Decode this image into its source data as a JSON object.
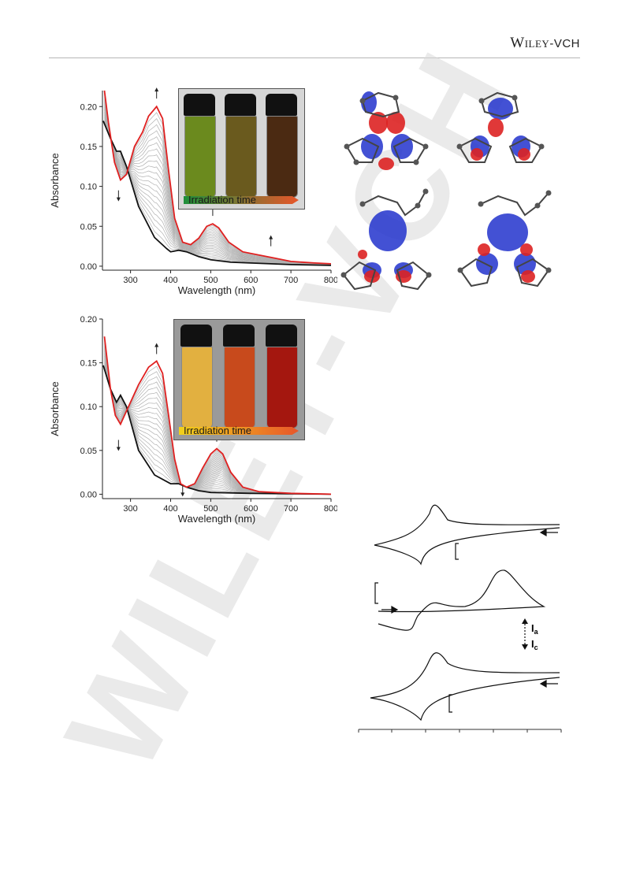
{
  "header": {
    "publisher_main": "Wiley",
    "publisher_suffix": "-VCH"
  },
  "watermark": {
    "text": "WILEY-VCH"
  },
  "panel_top": {
    "photo_label": "Irradiation time",
    "colors": {
      "start": "#1e8f3a",
      "end": "#e8562a",
      "vial_1": "#6b8a1e",
      "vial_2": "#6a5a1e",
      "vial_3": "#4b2a12"
    }
  },
  "panel_bottom": {
    "photo_label": "Irradiation time",
    "colors": {
      "start": "#f2d21b",
      "end": "#e8562a",
      "vial_1": "#e2b040",
      "vial_2": "#c84a1c",
      "vial_3": "#a4170f"
    }
  },
  "cv": {
    "label_anodic": "I",
    "sub_anodic": "a",
    "label_cathodic": "I",
    "sub_cathodic": "c"
  },
  "chart_data": [
    {
      "type": "line",
      "title": "",
      "xlabel": "Wavelength (nm)",
      "ylabel": "Absorbance",
      "xlim": [
        230,
        800
      ],
      "ylim": [
        -0.005,
        0.22
      ],
      "x_ticks": [
        "300",
        "400",
        "500",
        "600",
        "700",
        "800"
      ],
      "y_ticks": [
        "0.00",
        "0.05",
        "0.10",
        "0.15",
        "0.20"
      ],
      "grid": false,
      "series": [
        {
          "color": "#111111",
          "points": [
            [
              232,
              0.182
            ],
            [
              250,
              0.16
            ],
            [
              265,
              0.144
            ],
            [
              275,
              0.144
            ],
            [
              290,
              0.125
            ],
            [
              320,
              0.075
            ],
            [
              360,
              0.036
            ],
            [
              390,
              0.022
            ],
            [
              400,
              0.018
            ],
            [
              420,
              0.02
            ],
            [
              440,
              0.018
            ],
            [
              470,
              0.012
            ],
            [
              500,
              0.008
            ],
            [
              550,
              0.005
            ],
            [
              600,
              0.004
            ],
            [
              700,
              0.002
            ],
            [
              800,
              0.001
            ]
          ]
        },
        {
          "color": "#e02020",
          "points": [
            [
              235,
              0.22
            ],
            [
              245,
              0.18
            ],
            [
              260,
              0.13
            ],
            [
              275,
              0.108
            ],
            [
              290,
              0.115
            ],
            [
              310,
              0.15
            ],
            [
              330,
              0.168
            ],
            [
              345,
              0.188
            ],
            [
              365,
              0.2
            ],
            [
              380,
              0.185
            ],
            [
              395,
              0.12
            ],
            [
              410,
              0.06
            ],
            [
              430,
              0.03
            ],
            [
              450,
              0.027
            ],
            [
              470,
              0.035
            ],
            [
              490,
              0.05
            ],
            [
              505,
              0.053
            ],
            [
              520,
              0.048
            ],
            [
              545,
              0.03
            ],
            [
              580,
              0.018
            ],
            [
              620,
              0.014
            ],
            [
              660,
              0.01
            ],
            [
              700,
              0.006
            ],
            [
              760,
              0.004
            ],
            [
              800,
              0.003
            ]
          ]
        }
      ],
      "arrows": [
        {
          "x": 365,
          "y": 0.21,
          "dir": "up"
        },
        {
          "x": 270,
          "y": 0.095,
          "dir": "down"
        },
        {
          "x": 505,
          "y": 0.063,
          "dir": "up"
        },
        {
          "x": 650,
          "y": 0.025,
          "dir": "up"
        }
      ]
    },
    {
      "type": "line",
      "title": "",
      "xlabel": "Wavelength (nm)",
      "ylabel": "Absorbance",
      "xlim": [
        230,
        800
      ],
      "ylim": [
        -0.005,
        0.2
      ],
      "x_ticks": [
        "300",
        "400",
        "500",
        "600",
        "700",
        "800"
      ],
      "y_ticks": [
        "0.00",
        "0.05",
        "0.10",
        "0.15",
        "0.20"
      ],
      "grid": false,
      "series": [
        {
          "color": "#111111",
          "points": [
            [
              232,
              0.147
            ],
            [
              250,
              0.12
            ],
            [
              265,
              0.105
            ],
            [
              275,
              0.113
            ],
            [
              290,
              0.1
            ],
            [
              320,
              0.05
            ],
            [
              360,
              0.022
            ],
            [
              400,
              0.012
            ],
            [
              420,
              0.012
            ],
            [
              440,
              0.008
            ],
            [
              470,
              0.004
            ],
            [
              500,
              0.002
            ],
            [
              600,
              0.001
            ],
            [
              800,
              0.0
            ]
          ]
        },
        {
          "color": "#e02020",
          "points": [
            [
              235,
              0.18
            ],
            [
              250,
              0.12
            ],
            [
              262,
              0.09
            ],
            [
              275,
              0.08
            ],
            [
              290,
              0.095
            ],
            [
              320,
              0.125
            ],
            [
              345,
              0.145
            ],
            [
              365,
              0.152
            ],
            [
              380,
              0.138
            ],
            [
              395,
              0.09
            ],
            [
              410,
              0.04
            ],
            [
              425,
              0.012
            ],
            [
              440,
              0.008
            ],
            [
              460,
              0.012
            ],
            [
              480,
              0.03
            ],
            [
              500,
              0.046
            ],
            [
              515,
              0.052
            ],
            [
              530,
              0.046
            ],
            [
              550,
              0.025
            ],
            [
              580,
              0.008
            ],
            [
              620,
              0.003
            ],
            [
              700,
              0.001
            ],
            [
              800,
              0.0
            ]
          ]
        }
      ],
      "arrows": [
        {
          "x": 365,
          "y": 0.16,
          "dir": "up"
        },
        {
          "x": 270,
          "y": 0.062,
          "dir": "down"
        },
        {
          "x": 515,
          "y": 0.06,
          "dir": "up"
        },
        {
          "x": 430,
          "y": 0.01,
          "dir": "down"
        }
      ]
    }
  ]
}
